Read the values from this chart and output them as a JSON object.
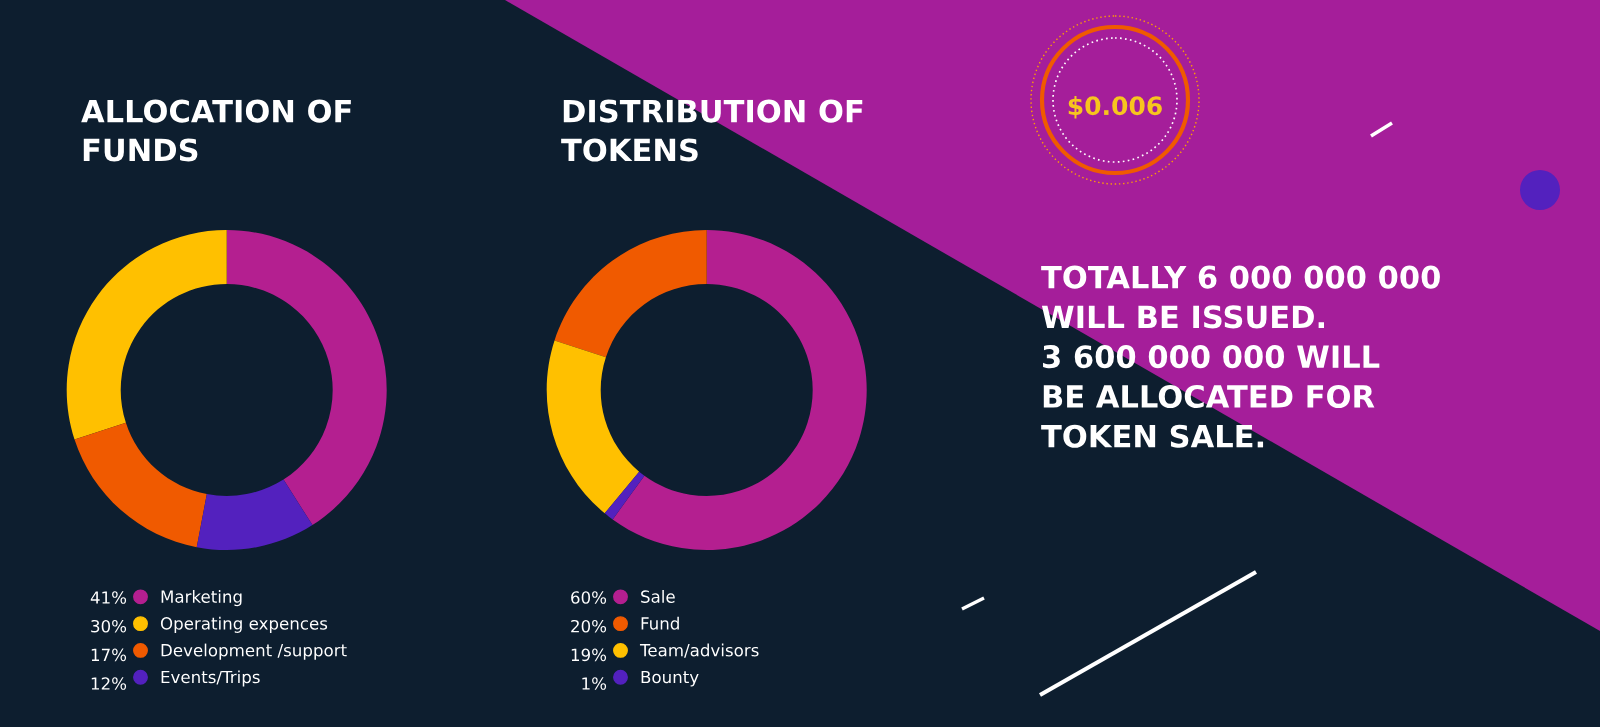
{
  "chart_data": [
    {
      "type": "donut",
      "title": "ALLOCATION OF\nFUNDS",
      "categories": [
        "Marketing",
        "Operating expences",
        "Development /support",
        "Events/Trips"
      ],
      "values": [
        41,
        30,
        17,
        12
      ],
      "value_labels": [
        "41%",
        "30%",
        "17%",
        "12%"
      ],
      "colors": [
        "#b41f90",
        "#ffc000",
        "#f05a00",
        "#5321be"
      ],
      "legend": "bottom"
    },
    {
      "type": "donut",
      "title": "DISTRIBUTION OF\nTOKENS",
      "categories": [
        "Sale",
        "Fund",
        "Team/advisors",
        "Bounty"
      ],
      "values": [
        60,
        20,
        19,
        1
      ],
      "value_labels": [
        "60%",
        "20%",
        "19%",
        "1%"
      ],
      "colors": [
        "#b41f90",
        "#f05a00",
        "#ffc000",
        "#5321be"
      ],
      "legend": "bottom"
    },
    {
      "type": "other",
      "annotations": [
        "$0.006",
        "TOTALLY 6 000 000 000\nWILL BE ISSUED.\n3 600 000 000 WILL\nBE ALLOCATED FOR\nTOKEN SALE."
      ]
    }
  ]
}
